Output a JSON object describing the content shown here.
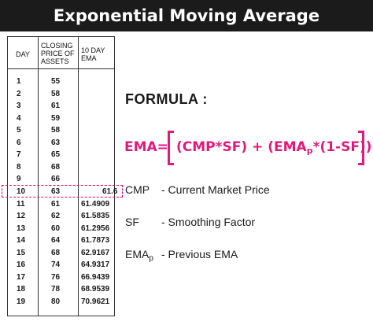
{
  "title": "Exponential Moving Average",
  "table": {
    "headers": [
      "DAY",
      "CLOSING PRICE OF ASSETS",
      "10 DAY EMA"
    ],
    "rows": [
      {
        "day": "1",
        "close": "55",
        "ema": ""
      },
      {
        "day": "2",
        "close": "58",
        "ema": ""
      },
      {
        "day": "3",
        "close": "61",
        "ema": ""
      },
      {
        "day": "4",
        "close": "59",
        "ema": ""
      },
      {
        "day": "5",
        "close": "58",
        "ema": ""
      },
      {
        "day": "6",
        "close": "63",
        "ema": ""
      },
      {
        "day": "7",
        "close": "65",
        "ema": ""
      },
      {
        "day": "8",
        "close": "68",
        "ema": ""
      },
      {
        "day": "9",
        "close": "66",
        "ema": ""
      },
      {
        "day": "10",
        "close": "63",
        "ema": "61.6"
      },
      {
        "day": "11",
        "close": "61",
        "ema": "61.4909"
      },
      {
        "day": "12",
        "close": "62",
        "ema": "61.5835"
      },
      {
        "day": "13",
        "close": "60",
        "ema": "61.2956"
      },
      {
        "day": "14",
        "close": "64",
        "ema": "61.7873"
      },
      {
        "day": "15",
        "close": "68",
        "ema": "62.9167"
      },
      {
        "day": "16",
        "close": "74",
        "ema": "64.9317"
      },
      {
        "day": "17",
        "close": "76",
        "ema": "66.9439"
      },
      {
        "day": "18",
        "close": "78",
        "ema": "68.9539"
      },
      {
        "day": "19",
        "close": "80",
        "ema": "70.9621"
      }
    ],
    "highlight_color": "#e0007a"
  },
  "formula": {
    "heading": "FORMULA :",
    "lhs": "EMA=",
    "expr_a": "(CMP*SF) + (EMA",
    "expr_sub": "p",
    "expr_b": "*(1-SF))",
    "color": "#e2197c"
  },
  "definitions": [
    {
      "term": "CMP",
      "term_sub": "",
      "desc": "- Current Market Price"
    },
    {
      "term": "SF",
      "term_sub": "",
      "desc": "- Smoothing Factor"
    },
    {
      "term": "EMA",
      "term_sub": "p",
      "desc": "- Previous EMA"
    }
  ]
}
